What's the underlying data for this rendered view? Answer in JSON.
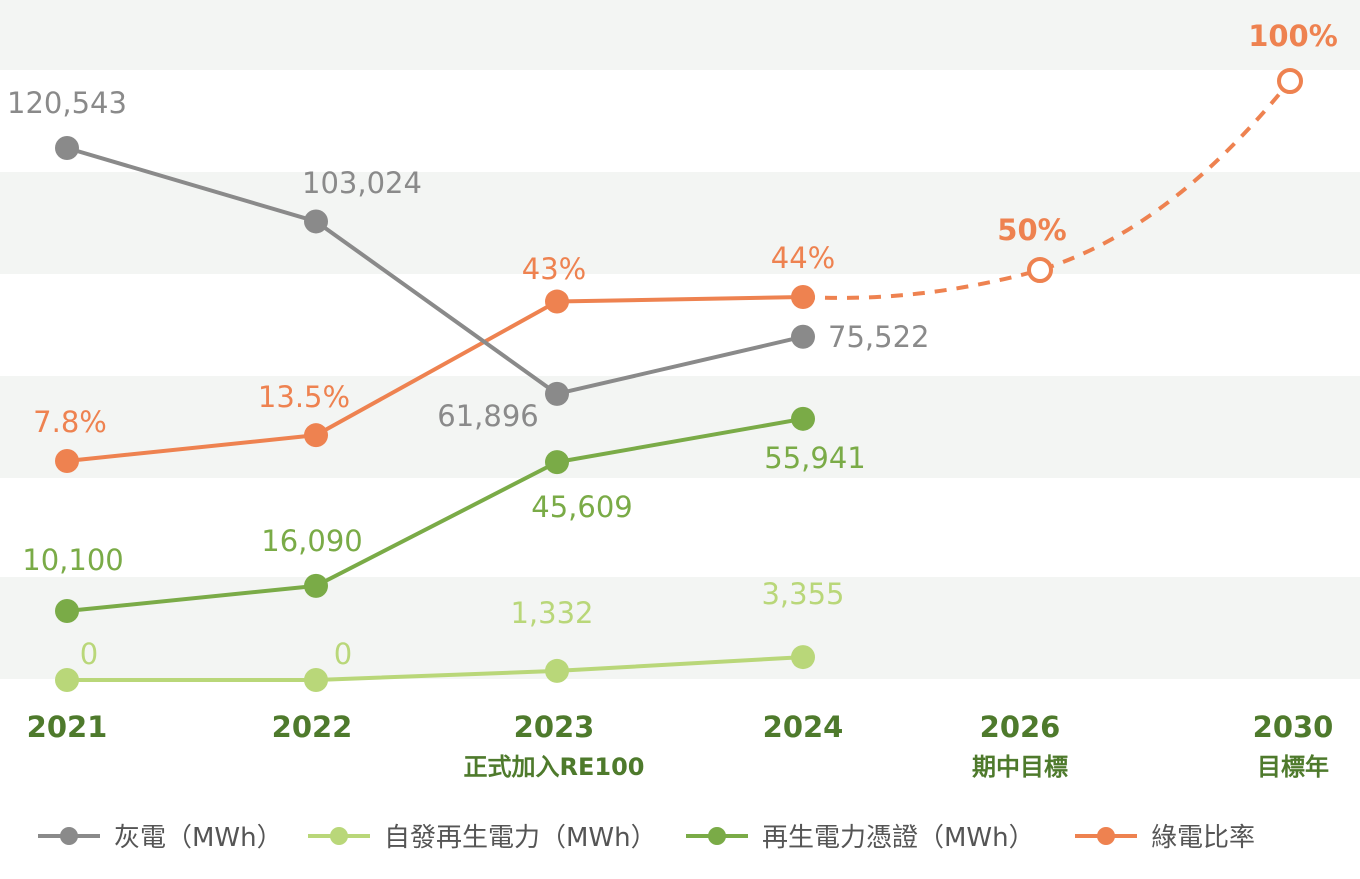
{
  "chart_data": {
    "type": "line",
    "x_categories": [
      {
        "year": "2021",
        "sub": ""
      },
      {
        "year": "2022",
        "sub": ""
      },
      {
        "year": "2023",
        "sub": "正式加入RE100"
      },
      {
        "year": "2024",
        "sub": ""
      },
      {
        "year": "2026",
        "sub": "期中目標"
      },
      {
        "year": "2030",
        "sub": "目標年"
      }
    ],
    "series": [
      {
        "key": "grey",
        "name": "灰電（MWh）",
        "color": "#8a8a8a",
        "axis": "mwh",
        "values": [
          120543,
          103024,
          61896,
          75522
        ],
        "labels": [
          "120,543",
          "103,024",
          "61,896",
          "75,522"
        ]
      },
      {
        "key": "self",
        "name": "自發再生電力（MWh）",
        "color": "#b9d779",
        "axis": "mwh",
        "values": [
          0,
          0,
          1332,
          3355
        ],
        "labels": [
          "0",
          "0",
          "1,332",
          "3,355"
        ]
      },
      {
        "key": "rec",
        "name": "再生電力憑證（MWh）",
        "color": "#7aab47",
        "axis": "mwh",
        "values": [
          10100,
          16090,
          45609,
          55941
        ],
        "labels": [
          "10,100",
          "16,090",
          "45,609",
          "55,941"
        ]
      },
      {
        "key": "ratio",
        "name": "綠電比率",
        "color": "#ee8250",
        "axis": "pct",
        "values": [
          7.8,
          13.5,
          43,
          44
        ],
        "labels": [
          "7.8%",
          "13.5%",
          "43%",
          "44%"
        ],
        "targets": [
          {
            "x_index": 4,
            "value": 50,
            "label": "50%"
          },
          {
            "x_index": 5,
            "value": 100,
            "label": "100%"
          }
        ]
      }
    ],
    "legend_position": "bottom",
    "grid": "alternating horizontal bands"
  }
}
